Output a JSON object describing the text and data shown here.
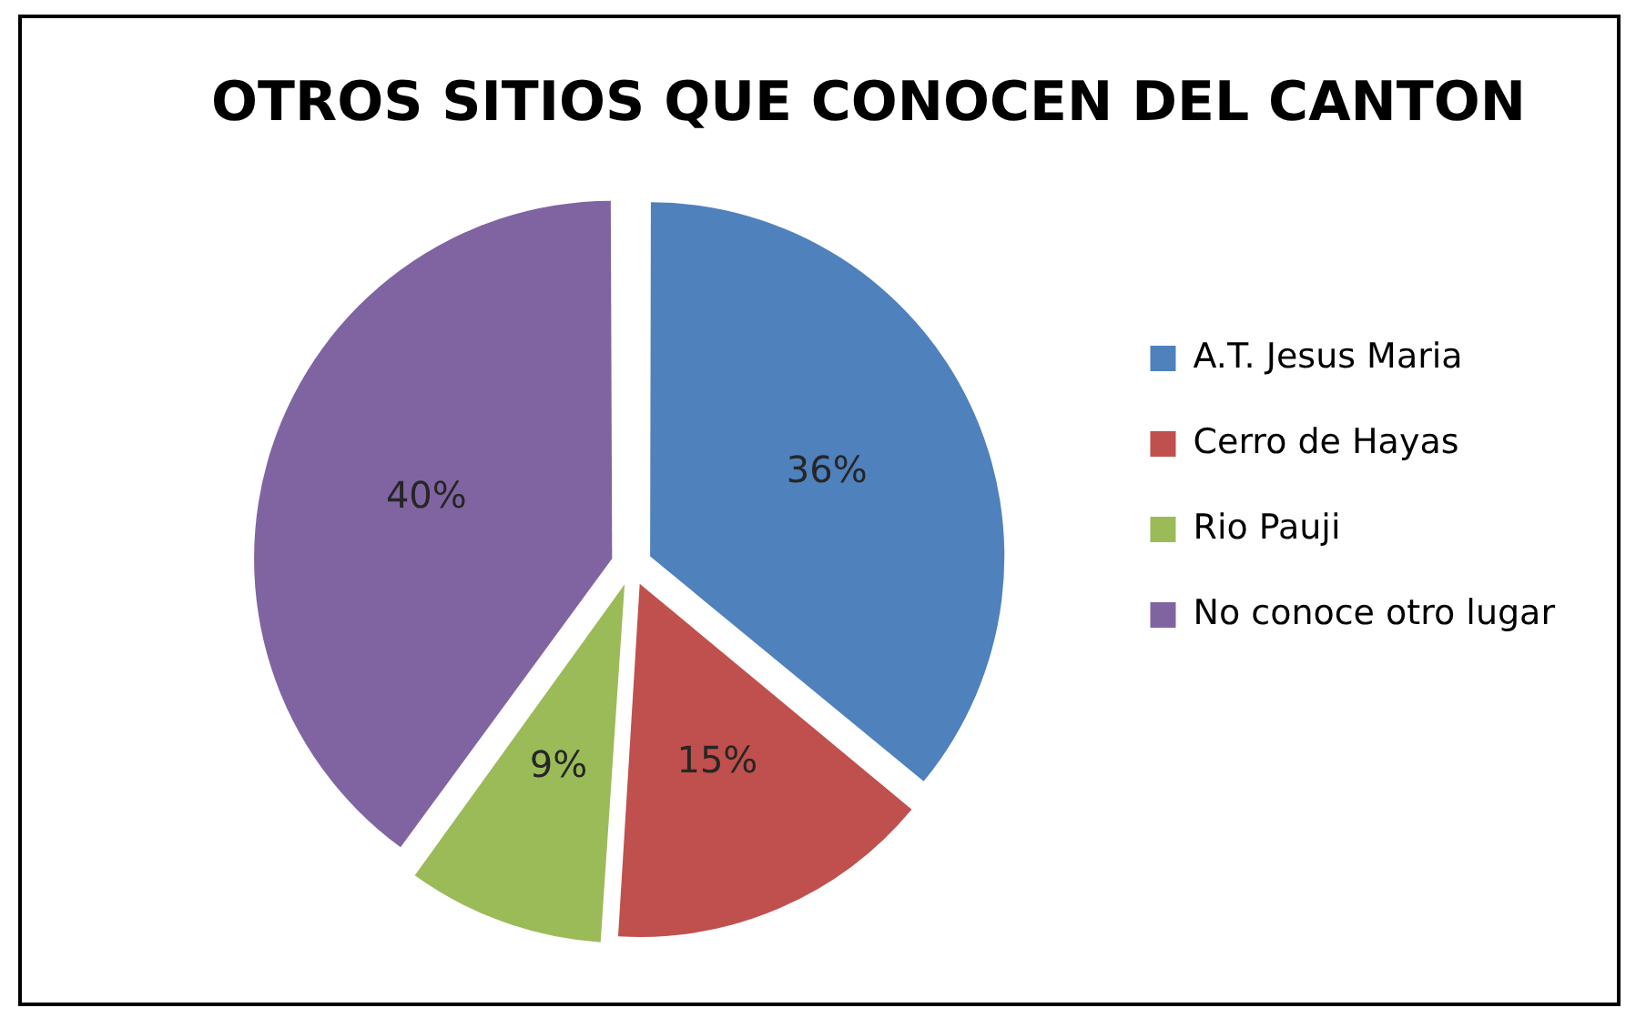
{
  "chart_data": {
    "type": "pie",
    "title": "OTROS SITIOS QUE CONOCEN DEL CANTON",
    "categories": [
      "A.T. Jesus Maria",
      "Cerro de Hayas",
      "Rio Pauji",
      "No conoce otro lugar"
    ],
    "values": [
      36,
      15,
      9,
      40
    ],
    "colors": [
      "#4f81bd",
      "#c0504d",
      "#9bbb59",
      "#8064a2"
    ],
    "value_labels": [
      "36%",
      "15%",
      "9%",
      "40%"
    ],
    "legend": "right"
  }
}
